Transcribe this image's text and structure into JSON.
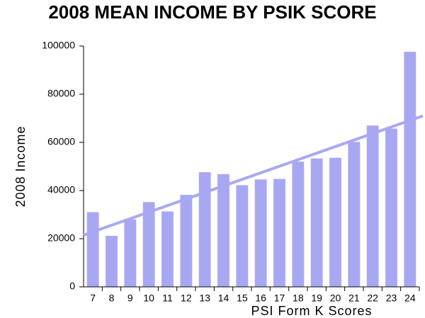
{
  "chart_data": {
    "type": "bar",
    "title": "2008 MEAN INCOME BY PSIK SCORE",
    "x_label": "PSI Form K Scores",
    "y_label": "2008 Income",
    "categories": [
      "7",
      "8",
      "9",
      "10",
      "11",
      "12",
      "13",
      "14",
      "15",
      "16",
      "17",
      "18",
      "19",
      "20",
      "21",
      "22",
      "23",
      "24"
    ],
    "values": [
      31000,
      21200,
      28000,
      35200,
      31300,
      38200,
      47600,
      46800,
      42200,
      44600,
      44800,
      52000,
      53300,
      53600,
      60200,
      67000,
      65700,
      97600
    ],
    "color": "#a8a8f2",
    "trend_line": [
      21500,
      71000
    ],
    "trend_color": "#a8a8f2",
    "ylim": [
      0,
      100000
    ],
    "yticks": [
      0,
      20000,
      40000,
      60000,
      80000,
      100000
    ],
    "grid": false
  }
}
